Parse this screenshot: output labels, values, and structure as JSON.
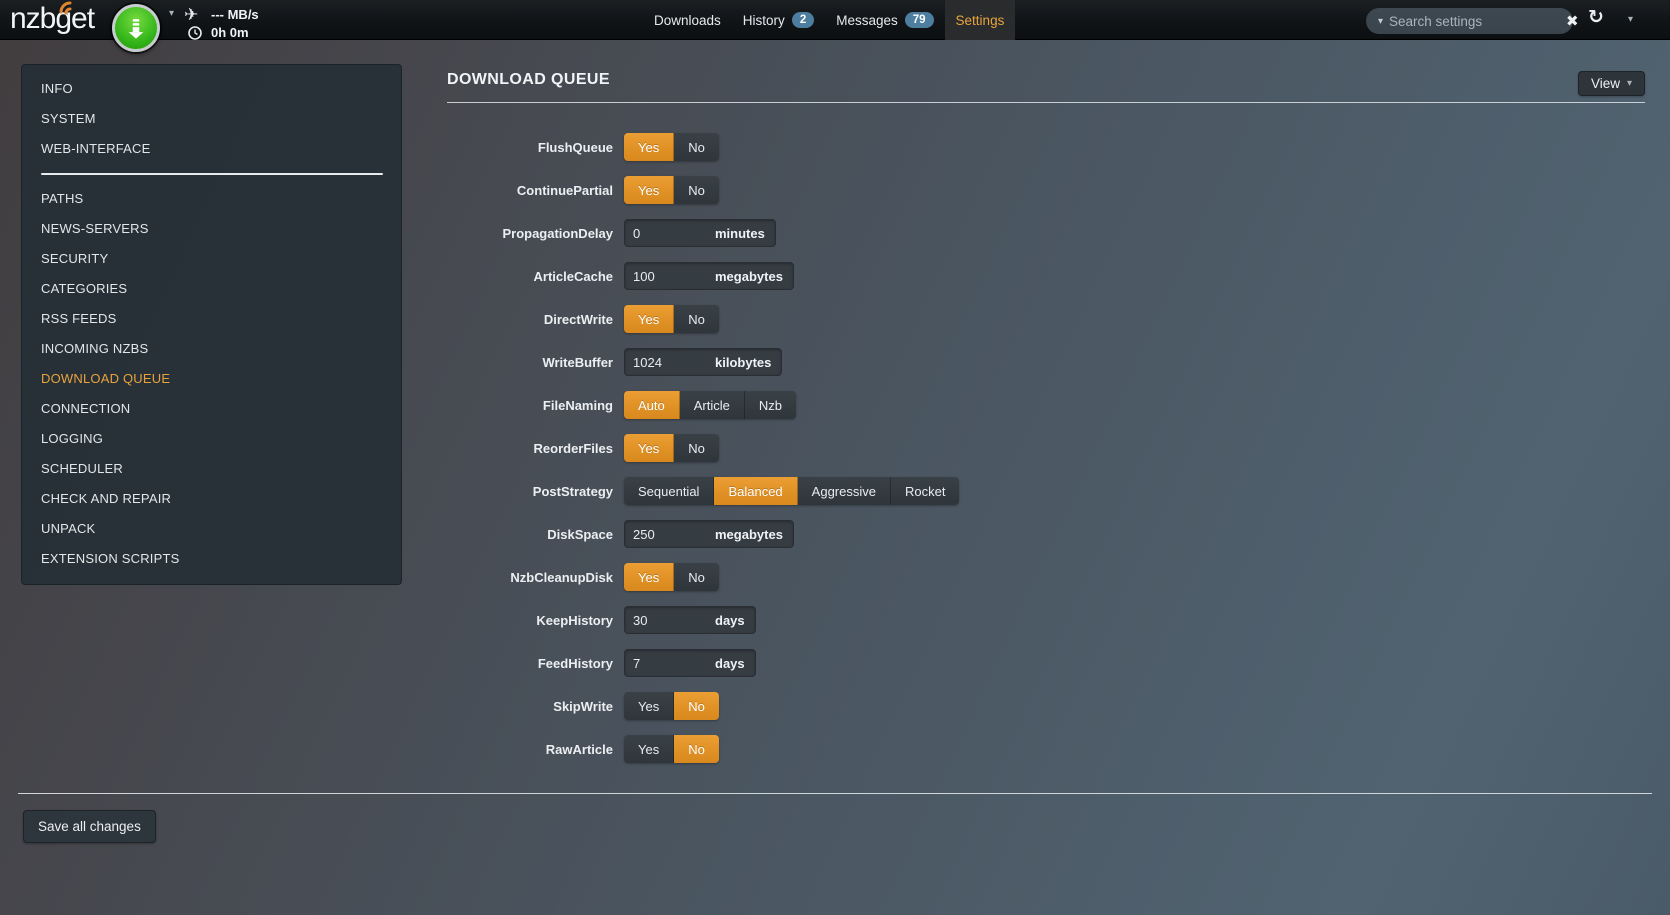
{
  "topbar": {
    "logo": "nzbget",
    "speed": "--- MB/s",
    "time_left": "0h 0m",
    "nav": [
      {
        "label": "Downloads",
        "badge": null,
        "active": false
      },
      {
        "label": "History",
        "badge": "2",
        "active": false
      },
      {
        "label": "Messages",
        "badge": "79",
        "active": false
      },
      {
        "label": "Settings",
        "badge": null,
        "active": true
      }
    ],
    "search": {
      "placeholder": "Search settings",
      "value": ""
    },
    "icons": [
      "download-icon",
      "airplane-icon",
      "clock-icon",
      "search-icon-caret",
      "clear-icon",
      "refresh-icon",
      "caret-down-icon"
    ]
  },
  "sidebar": {
    "top_items": [
      "INFO",
      "SYSTEM",
      "WEB-INTERFACE"
    ],
    "items": [
      "PATHS",
      "NEWS-SERVERS",
      "SECURITY",
      "CATEGORIES",
      "RSS FEEDS",
      "INCOMING NZBS",
      "DOWNLOAD QUEUE",
      "CONNECTION",
      "LOGGING",
      "SCHEDULER",
      "CHECK AND REPAIR",
      "UNPACK",
      "EXTENSION SCRIPTS"
    ],
    "active_item": "DOWNLOAD QUEUE"
  },
  "main": {
    "title": "DOWNLOAD QUEUE",
    "view_button_label": "View",
    "save_button_label": "Save all changes",
    "settings": [
      {
        "name": "FlushQueue",
        "type": "switch",
        "options": [
          "Yes",
          "No"
        ],
        "selected": "Yes"
      },
      {
        "name": "ContinuePartial",
        "type": "switch",
        "options": [
          "Yes",
          "No"
        ],
        "selected": "Yes"
      },
      {
        "name": "PropagationDelay",
        "type": "input",
        "value": "0",
        "unit": "minutes"
      },
      {
        "name": "ArticleCache",
        "type": "input",
        "value": "100",
        "unit": "megabytes"
      },
      {
        "name": "DirectWrite",
        "type": "switch",
        "options": [
          "Yes",
          "No"
        ],
        "selected": "Yes"
      },
      {
        "name": "WriteBuffer",
        "type": "input",
        "value": "1024",
        "unit": "kilobytes"
      },
      {
        "name": "FileNaming",
        "type": "switch",
        "options": [
          "Auto",
          "Article",
          "Nzb"
        ],
        "selected": "Auto"
      },
      {
        "name": "ReorderFiles",
        "type": "switch",
        "options": [
          "Yes",
          "No"
        ],
        "selected": "Yes"
      },
      {
        "name": "PostStrategy",
        "type": "switch",
        "options": [
          "Sequential",
          "Balanced",
          "Aggressive",
          "Rocket"
        ],
        "selected": "Balanced"
      },
      {
        "name": "DiskSpace",
        "type": "input",
        "value": "250",
        "unit": "megabytes"
      },
      {
        "name": "NzbCleanupDisk",
        "type": "switch",
        "options": [
          "Yes",
          "No"
        ],
        "selected": "Yes"
      },
      {
        "name": "KeepHistory",
        "type": "input",
        "value": "30",
        "unit": "days"
      },
      {
        "name": "FeedHistory",
        "type": "input",
        "value": "7",
        "unit": "days"
      },
      {
        "name": "SkipWrite",
        "type": "switch",
        "options": [
          "Yes",
          "No"
        ],
        "selected": "No"
      },
      {
        "name": "RawArticle",
        "type": "switch",
        "options": [
          "Yes",
          "No"
        ],
        "selected": "No"
      }
    ]
  },
  "colors": {
    "accent_orange": "#de9126",
    "active_nav_text": "#e8a33d",
    "badge_blue": "#4d7ea0",
    "panel_dark": "#2b343b",
    "button_green": "#33b519"
  }
}
